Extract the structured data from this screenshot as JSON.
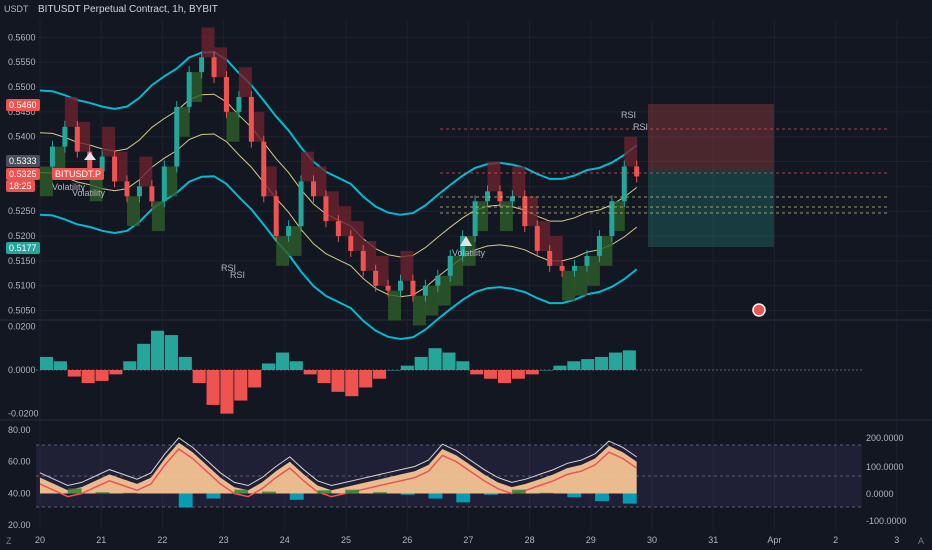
{
  "header": {
    "currency": "USDT",
    "title": "BITUSDT Perpetual Contract, 1h, BYBIT"
  },
  "badges": {
    "price_top": "0.5460",
    "price_cur": "0.5333",
    "price_last": "0.5325",
    "countdown": "18:25",
    "price_low": "0.5177",
    "symbol_tag": "BITUSDT.P"
  },
  "annotations": {
    "volatility": "Volatility",
    "rsi": "RSI"
  },
  "corners": {
    "left": "Z",
    "right": "A"
  },
  "colors": {
    "background": "#131722",
    "grid": "#1e222d",
    "bull": "#26a69a",
    "bear": "#ef5350",
    "band": "#00bcd4",
    "mid": "#d4c98a",
    "cloud_up": "#2e5e2b",
    "cloud_down": "#6b2330"
  },
  "chart_data": [
    {
      "type": "line",
      "title": "BITUSDT Perpetual Contract, 1h, BYBIT",
      "x_labels": [
        "20",
        "21",
        "22",
        "23",
        "24",
        "25",
        "26",
        "27",
        "28",
        "29",
        "30",
        "31",
        "Apr",
        "2",
        "3"
      ],
      "y_ticks": [
        "0.5600",
        "0.5550",
        "0.5500",
        "0.5450",
        "0.5400",
        "0.5350",
        "0.5300",
        "0.5250",
        "0.5200",
        "0.5150",
        "0.5100",
        "0.5050"
      ],
      "ylim": [
        0.5035,
        0.5635
      ],
      "series": [
        {
          "values": [
            0.534,
            0.538,
            0.542,
            0.537,
            0.533,
            0.536,
            0.531,
            0.528,
            0.53,
            0.527,
            0.534,
            0.546,
            0.553,
            0.556,
            0.552,
            0.545,
            0.548,
            0.539,
            0.528,
            0.52,
            0.522,
            0.531,
            0.528,
            0.523,
            0.52,
            0.517,
            0.513,
            0.51,
            0.509,
            0.511,
            0.508,
            0.51,
            0.512,
            0.516,
            0.52,
            0.527,
            0.529,
            0.527,
            0.528,
            0.522,
            0.517,
            0.514,
            0.513,
            0.514,
            0.516,
            0.52,
            0.527,
            0.534,
            0.532
          ]
        }
      ]
    },
    {
      "type": "bar",
      "y_ticks": [
        "0.0200",
        "0.0000",
        "-0.0200"
      ],
      "ylim": [
        -0.022,
        0.022
      ],
      "values": [
        0.006,
        0.004,
        -0.003,
        -0.006,
        -0.005,
        -0.002,
        0.004,
        0.012,
        0.018,
        0.016,
        0.006,
        -0.006,
        -0.016,
        -0.02,
        -0.014,
        -0.008,
        0.003,
        0.008,
        0.004,
        -0.002,
        -0.006,
        -0.01,
        -0.012,
        -0.008,
        -0.004,
        0.0,
        0.002,
        0.006,
        0.01,
        0.008,
        0.004,
        -0.002,
        -0.004,
        -0.006,
        -0.004,
        -0.002,
        0.0,
        0.002,
        0.004,
        0.005,
        0.006,
        0.008,
        0.009
      ]
    },
    {
      "type": "area",
      "y_ticks": [
        "80.00",
        "60.00",
        "40.00",
        "20.00"
      ],
      "y_ticks_right": [
        "200.0000",
        "100.0000",
        "0.0000",
        "-100.0000"
      ],
      "ylim": [
        17,
        85
      ],
      "values": [
        50,
        46,
        42,
        44,
        48,
        52,
        49,
        46,
        50,
        62,
        72,
        66,
        58,
        50,
        44,
        42,
        47,
        54,
        60,
        52,
        45,
        42,
        44,
        46,
        48,
        50,
        52,
        54,
        58,
        68,
        64,
        58,
        52,
        47,
        44,
        46,
        49,
        52,
        56,
        58,
        62,
        70,
        66,
        60
      ]
    }
  ]
}
